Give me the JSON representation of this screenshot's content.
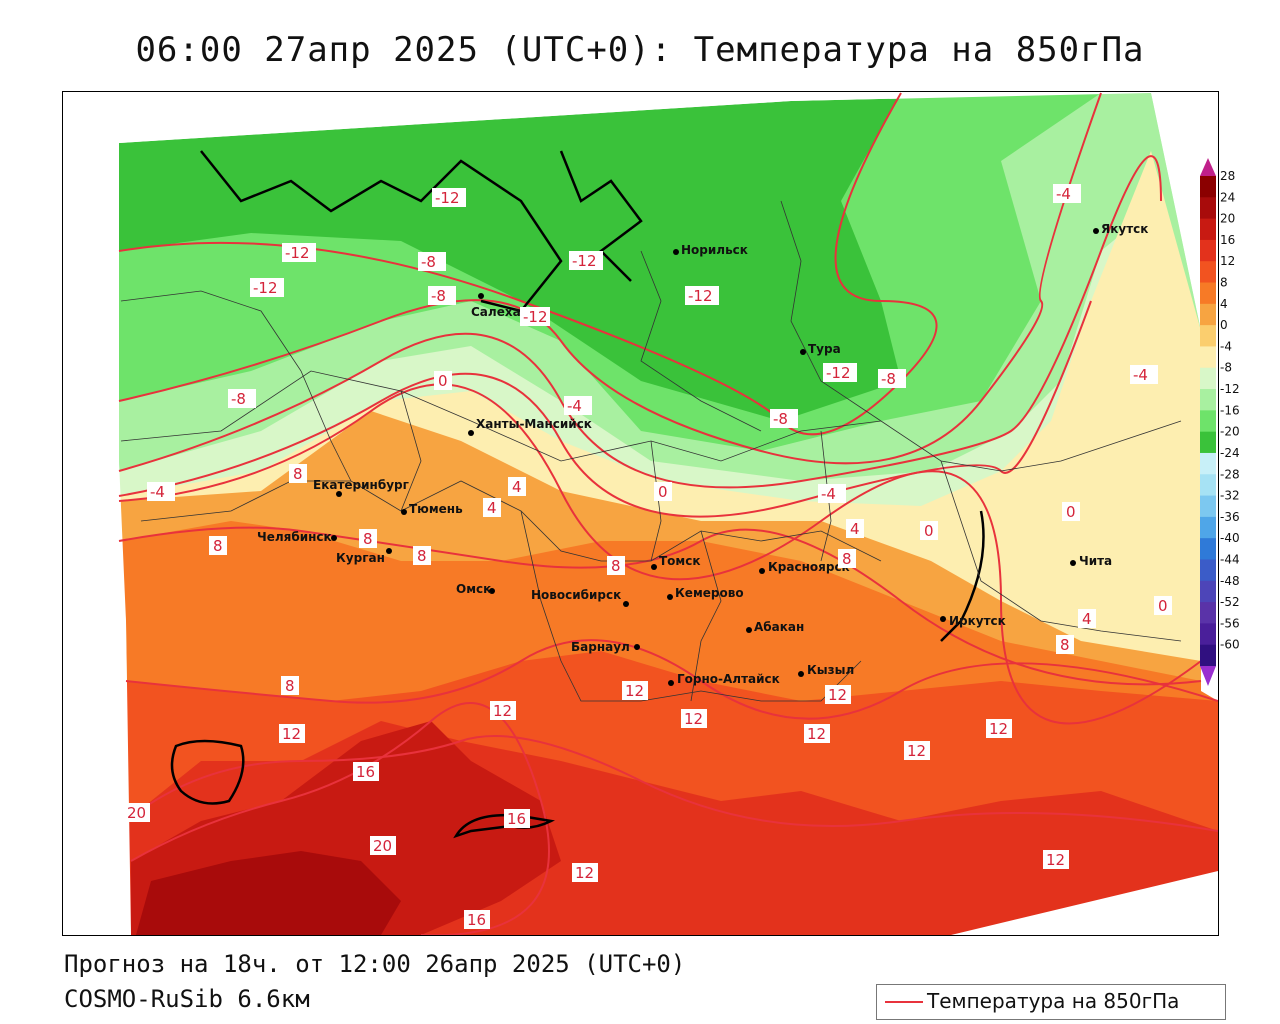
{
  "title": "06:00 27апр 2025 (UTC+0): Температура на 850гПа",
  "footer": {
    "forecast": "Прогноз на 18ч. от 12:00 26апр 2025 (UTC+0)",
    "model": "COSMO-RuSib 6.6км"
  },
  "legend": {
    "label": "Температура на 850гПа",
    "line_color": "#e8323c"
  },
  "colorbar": {
    "levels": [
      "28",
      "24",
      "20",
      "16",
      "12",
      "8",
      "4",
      "0",
      "-4",
      "-8",
      "-12",
      "-16",
      "-20",
      "-24",
      "-28",
      "-32",
      "-36",
      "-40",
      "-44",
      "-48",
      "-52",
      "-56",
      "-60"
    ],
    "colors": [
      "#8b0000",
      "#a80b0b",
      "#c81a12",
      "#e3321c",
      "#f25320",
      "#f77a26",
      "#f7a441",
      "#fbce6e",
      "#fdeeb0",
      "#d8f7c8",
      "#a8f0a0",
      "#6ee36a",
      "#3ac23a",
      "#c8f0f8",
      "#a6e2f4",
      "#7cc8f0",
      "#4fa6e8",
      "#2f7ad8",
      "#3b5cc8",
      "#4d45b8",
      "#5a33a8",
      "#4a1f9a",
      "#301080"
    ],
    "top_arrow_color": "#c0208a",
    "bottom_arrow_color": "#9a2fd0"
  },
  "cities": [
    {
      "name": "Норильск"
    },
    {
      "name": "Якутск"
    },
    {
      "name": "Салехард"
    },
    {
      "name": "Тура"
    },
    {
      "name": "Ханты-Мансийск"
    },
    {
      "name": "Екатеринбург"
    },
    {
      "name": "Тюмень"
    },
    {
      "name": "Челябинск"
    },
    {
      "name": "Курган"
    },
    {
      "name": "Омск"
    },
    {
      "name": "Томск"
    },
    {
      "name": "Красноярск"
    },
    {
      "name": "Новосибирск"
    },
    {
      "name": "Кемерово"
    },
    {
      "name": "Абакан"
    },
    {
      "name": "Барнаул"
    },
    {
      "name": "Горно-Алтайск"
    },
    {
      "name": "Кызыл"
    },
    {
      "name": "Иркутск"
    },
    {
      "name": "Чита"
    }
  ],
  "isoline_labels": [
    "-12",
    "-12",
    "-12",
    "-12",
    "-12",
    "-12",
    "-12",
    "-8",
    "-8",
    "-8",
    "-8",
    "-8",
    "-4",
    "-4",
    "-4",
    "-4",
    "-4",
    "0",
    "0",
    "0",
    "0",
    "0",
    "4",
    "4",
    "4",
    "4",
    "8",
    "8",
    "8",
    "8",
    "8",
    "8",
    "8",
    "8",
    "12",
    "12",
    "12",
    "12",
    "12",
    "12",
    "12",
    "12",
    "12",
    "12",
    "16",
    "16",
    "16",
    "20",
    "20"
  ]
}
